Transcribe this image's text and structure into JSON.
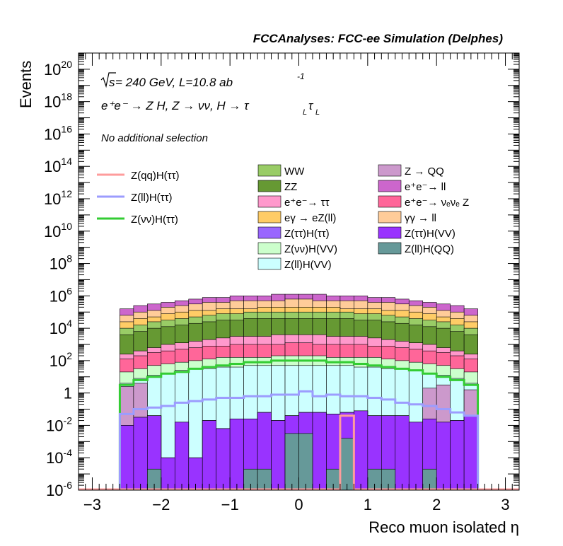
{
  "header": {
    "title": "FCCAnalyses: FCC-ee Simulation (Delphes)"
  },
  "annotations": {
    "energy_prefix": "s",
    "energy_text": " = 240 GeV, L=10.8 ab",
    "energy_sup": "-1",
    "process_text": "e⁺e⁻ → Z H, Z → νν, H → τ",
    "process_sub1": "L",
    "process_tau2": "τ",
    "process_sub2": "L",
    "selection": "No additional selection"
  },
  "legend": {
    "signals": [
      {
        "label": "Z(qq)H(ττ)",
        "color": "#fe9c9c"
      },
      {
        "label": "Z(ll)H(ττ)",
        "color": "#9c9cfe"
      },
      {
        "label": "Z(νν)H(ττ)",
        "color": "#33cc33"
      }
    ],
    "backgrounds_col1": [
      {
        "label": "WW",
        "color": "#99cc66"
      },
      {
        "label": "ZZ",
        "color": "#669933"
      },
      {
        "label": "e⁺e⁻→ ττ",
        "color": "#ff99cc"
      },
      {
        "label": "eγ → eZ(ll)",
        "color": "#ffcc66"
      },
      {
        "label": "Z(ττ)H(ττ)",
        "color": "#9966ff"
      },
      {
        "label": "Z(νν)H(VV)",
        "color": "#ccffcc"
      },
      {
        "label": "Z(ll)H(VV)",
        "color": "#ccffff"
      }
    ],
    "backgrounds_col2": [
      {
        "label": "Z → QQ",
        "color": "#cc99cc"
      },
      {
        "label": "e⁺e⁻→ ll",
        "color": "#cc66cc"
      },
      {
        "label": "e⁺e⁻→ νₑνₑ Z",
        "color": "#ff6699"
      },
      {
        "label": "γγ → ll",
        "color": "#ffcc99"
      },
      {
        "label": "Z(ττ)H(VV)",
        "color": "#9933ff"
      },
      {
        "label": "Z(ll)H(QQ)",
        "color": "#669999"
      }
    ]
  },
  "chart_data": {
    "type": "area",
    "subtype": "stacked histogram, log y",
    "xlabel": "Reco muon isolated η",
    "ylabel": "Events",
    "xlim": [
      -3.2,
      3.2
    ],
    "ylim": [
      1e-06,
      1e+21
    ],
    "yscale": "log",
    "xticks": [
      -3,
      -2,
      -1,
      0,
      1,
      2,
      3
    ],
    "xtick_labels": [
      "−3",
      "−2",
      "−1",
      "0",
      "1",
      "2",
      "3"
    ],
    "yticks": [
      {
        "base": "10",
        "exp": "20",
        "value": 1e+20
      },
      {
        "base": "10",
        "exp": "18",
        "value": 1e+18
      },
      {
        "base": "10",
        "exp": "16",
        "value": 1e+16
      },
      {
        "base": "10",
        "exp": "14",
        "value": 100000000000000.0
      },
      {
        "base": "10",
        "exp": "12",
        "value": 1000000000000.0
      },
      {
        "base": "10",
        "exp": "10",
        "value": 10000000000.0
      },
      {
        "base": "10",
        "exp": "8",
        "value": 100000000.0
      },
      {
        "base": "10",
        "exp": "6",
        "value": 1000000.0
      },
      {
        "base": "10",
        "exp": "4",
        "value": 10000.0
      },
      {
        "base": "10",
        "exp": "2",
        "value": 100.0
      },
      {
        "base": "1",
        "exp": "",
        "value": 1
      },
      {
        "base": "10",
        "exp": "-2",
        "value": 0.01
      },
      {
        "base": "10",
        "exp": "-4",
        "value": 0.0001
      },
      {
        "base": "10",
        "exp": "-6",
        "value": 1e-06
      }
    ],
    "bin_edges": [
      -2.6,
      -2.4,
      -2.2,
      -2.0,
      -1.8,
      -1.6,
      -1.4,
      -1.2,
      -1.0,
      -0.8,
      -0.6,
      -0.4,
      -0.2,
      0.0,
      0.2,
      0.4,
      0.6,
      0.8,
      1.0,
      1.2,
      1.4,
      1.6,
      1.8,
      2.0,
      2.2,
      2.4,
      2.6
    ],
    "stack_top_boundaries_log10": [
      {
        "series": "Z(ll)H(QQ)",
        "color": "#669999",
        "values": [
          -6,
          -6,
          -4.7,
          -6,
          -6,
          -6,
          -6,
          -6,
          -6,
          -4.7,
          -4.7,
          -6,
          -2.5,
          -2.5,
          -6,
          -4.7,
          -2.8,
          -6,
          -4.7,
          -4.7,
          -6,
          -6,
          -4.7,
          -6,
          -6,
          -6
        ]
      },
      {
        "series": "Z(ττ)H(VV)",
        "color": "#9933ff",
        "values": [
          -2.0,
          -1.5,
          -1.4,
          -4.0,
          -1.8,
          -4.0,
          -1.7,
          -2.2,
          -1.6,
          -1.6,
          -1.2,
          -1.7,
          -1.4,
          -1.2,
          -1.2,
          -1.3,
          -1.2,
          -1.1,
          -1.4,
          -1.4,
          -1.4,
          -1.8,
          -1.6,
          -1.8,
          -1.7,
          -1.4
        ]
      },
      {
        "series": "Z(ττ)H(ττ)",
        "color": "#9966ff",
        "values": [
          -2.0,
          -1.5,
          -1.4,
          -4.0,
          -1.8,
          -4.0,
          -1.7,
          -2.2,
          -1.6,
          -1.6,
          -1.2,
          -1.7,
          -1.4,
          -1.2,
          -1.2,
          -1.3,
          -1.2,
          -1.1,
          -1.4,
          -1.4,
          -1.4,
          -1.8,
          -1.6,
          -1.8,
          -1.7,
          -1.4
        ]
      },
      {
        "series": "Z → QQ",
        "color": "#cc99cc",
        "values": [
          0.4,
          0.6,
          -1.4,
          -4.0,
          -1.8,
          -4.0,
          -1.7,
          -2.2,
          -1.6,
          -1.6,
          -1.2,
          -1.7,
          -1.4,
          -1.2,
          -1.2,
          -1.3,
          -1.2,
          -1.1,
          -1.4,
          -1.4,
          -1.4,
          -1.8,
          0.3,
          0.5,
          -1.7,
          0.2
        ]
      },
      {
        "series": "Z(ll)H(VV)",
        "color": "#ccffff",
        "values": [
          0.6,
          0.9,
          1.1,
          1.2,
          1.4,
          1.5,
          1.5,
          1.6,
          1.6,
          1.7,
          1.7,
          1.7,
          1.7,
          1.7,
          1.7,
          1.7,
          1.7,
          1.6,
          1.6,
          1.5,
          1.5,
          1.4,
          1.2,
          1.1,
          0.9,
          0.6
        ]
      },
      {
        "series": "Z(νν)H(VV)",
        "color": "#ccffcc",
        "values": [
          1.3,
          1.5,
          1.7,
          1.8,
          1.9,
          2.0,
          2.1,
          2.2,
          2.2,
          2.2,
          2.2,
          2.3,
          2.3,
          2.3,
          2.3,
          2.2,
          2.2,
          2.2,
          2.2,
          2.1,
          2.0,
          1.9,
          1.8,
          1.7,
          1.5,
          1.3
        ]
      },
      {
        "series": "e⁺e⁻→ νₑνₑ Z",
        "color": "#ff6699",
        "values": [
          2.1,
          2.3,
          2.5,
          2.6,
          2.7,
          2.8,
          2.9,
          2.9,
          3.0,
          3.0,
          3.0,
          3.0,
          3.1,
          3.1,
          3.0,
          3.0,
          3.0,
          3.0,
          2.9,
          2.9,
          2.8,
          2.7,
          2.6,
          2.5,
          2.3,
          2.1
        ]
      },
      {
        "series": "e⁺e⁻→ ττ",
        "color": "#ff99cc",
        "values": [
          2.4,
          2.6,
          2.8,
          3.0,
          3.1,
          3.2,
          3.3,
          3.4,
          3.5,
          3.5,
          3.5,
          3.6,
          3.6,
          3.6,
          3.6,
          3.5,
          3.5,
          3.5,
          3.4,
          3.3,
          3.2,
          3.1,
          3.0,
          2.8,
          2.6,
          2.4
        ]
      },
      {
        "series": "ZZ",
        "color": "#669933",
        "values": [
          3.6,
          3.8,
          4.0,
          4.1,
          4.2,
          4.3,
          4.4,
          4.5,
          4.5,
          4.6,
          4.6,
          4.6,
          4.6,
          4.6,
          4.6,
          4.6,
          4.6,
          4.5,
          4.5,
          4.4,
          4.3,
          4.2,
          4.1,
          4.0,
          3.8,
          3.6
        ]
      },
      {
        "series": "WW",
        "color": "#99cc66",
        "values": [
          4.0,
          4.2,
          4.4,
          4.5,
          4.6,
          4.7,
          4.8,
          4.9,
          4.9,
          5.0,
          5.0,
          5.0,
          5.0,
          5.0,
          5.0,
          5.0,
          5.0,
          4.9,
          4.9,
          4.8,
          4.7,
          4.6,
          4.5,
          4.4,
          4.2,
          4.0
        ]
      },
      {
        "series": "eγ → eZ(ll)",
        "color": "#ffcc66",
        "values": [
          4.4,
          4.6,
          4.7,
          4.9,
          5.0,
          5.1,
          5.1,
          5.2,
          5.2,
          5.2,
          5.3,
          5.3,
          5.3,
          5.3,
          5.3,
          5.3,
          5.2,
          5.2,
          5.2,
          5.1,
          5.1,
          5.0,
          4.9,
          4.7,
          4.6,
          4.4
        ]
      },
      {
        "series": "γγ → ll",
        "color": "#ffcc99",
        "values": [
          4.8,
          5.0,
          5.1,
          5.3,
          5.4,
          5.5,
          5.6,
          5.6,
          5.7,
          5.7,
          5.7,
          5.7,
          5.8,
          5.8,
          5.7,
          5.7,
          5.7,
          5.7,
          5.6,
          5.6,
          5.5,
          5.4,
          5.3,
          5.1,
          5.0,
          4.8
        ]
      },
      {
        "series": "e⁺e⁻→ ll",
        "color": "#cc66cc",
        "values": [
          5.2,
          5.4,
          5.5,
          5.6,
          5.7,
          5.8,
          5.9,
          5.9,
          6.0,
          6.0,
          6.0,
          6.1,
          6.1,
          6.1,
          6.1,
          6.0,
          6.0,
          6.0,
          5.9,
          5.9,
          5.8,
          5.7,
          5.6,
          5.5,
          5.4,
          5.2
        ]
      }
    ],
    "lines_log10": [
      {
        "series": "Z(νν)H(ττ)",
        "color": "#33cc33",
        "values": [
          0.5,
          0.8,
          1.0,
          1.2,
          1.3,
          1.5,
          1.6,
          1.7,
          1.8,
          1.9,
          1.9,
          2.0,
          2.0,
          2.0,
          2.0,
          1.9,
          1.9,
          1.8,
          1.7,
          1.6,
          1.5,
          1.4,
          1.2,
          1.0,
          0.8,
          0.5
        ]
      },
      {
        "series": "Z(ll)H(ττ)",
        "color": "#9c9cfe",
        "values": [
          -1.3,
          -1.0,
          -0.9,
          -0.8,
          -0.6,
          -0.5,
          -0.4,
          -0.3,
          -0.3,
          -0.2,
          -0.2,
          -0.1,
          -0.1,
          0.1,
          -0.2,
          -0.1,
          -0.2,
          -0.2,
          -0.3,
          -0.4,
          -0.6,
          -0.7,
          -0.8,
          -1.0,
          -1.2,
          -1.4
        ]
      },
      {
        "series": "Z(qq)H(ττ)",
        "color": "#fe9c9c",
        "values": [
          -6,
          -6,
          -6,
          -6,
          -6,
          -6,
          -6,
          -6,
          -6,
          -6,
          -6,
          -6,
          -6,
          -6,
          -6,
          -6,
          -1.4,
          -6,
          -6,
          -6,
          -6,
          -6,
          -6,
          -6,
          -6,
          -6
        ]
      }
    ]
  }
}
